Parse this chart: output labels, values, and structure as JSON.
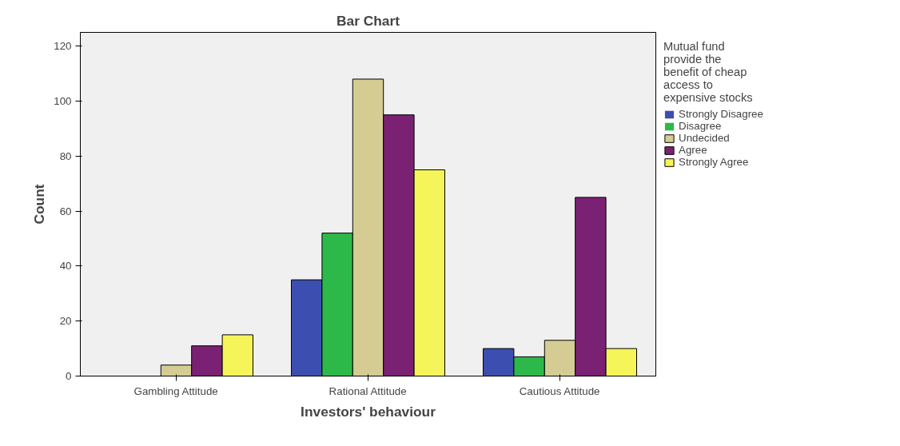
{
  "chart_data": {
    "type": "bar",
    "title": "Bar Chart",
    "xlabel": "Investors' behaviour",
    "ylabel": "Count",
    "legend_title": "Mutual fund provide the benefit of cheap access to expensive stocks",
    "categories": [
      "Gambling Attitude",
      "Rational Attitude",
      "Cautious Attitude"
    ],
    "series": [
      {
        "name": "Strongly Disagree",
        "color": "#3c4fb0",
        "values": [
          0,
          35,
          10
        ]
      },
      {
        "name": "Disagree",
        "color": "#2db84a",
        "values": [
          0,
          52,
          7
        ]
      },
      {
        "name": "Undecided",
        "color": "#d4cc93",
        "values": [
          4,
          108,
          13
        ]
      },
      {
        "name": "Agree",
        "color": "#7b2173",
        "values": [
          11,
          95,
          65
        ]
      },
      {
        "name": "Strongly Agree",
        "color": "#f5f55a",
        "values": [
          15,
          75,
          10
        ]
      }
    ],
    "ylim": [
      0,
      125
    ],
    "yticks": [
      0,
      20,
      40,
      60,
      80,
      100,
      120
    ],
    "grid": false,
    "legend": "right"
  }
}
